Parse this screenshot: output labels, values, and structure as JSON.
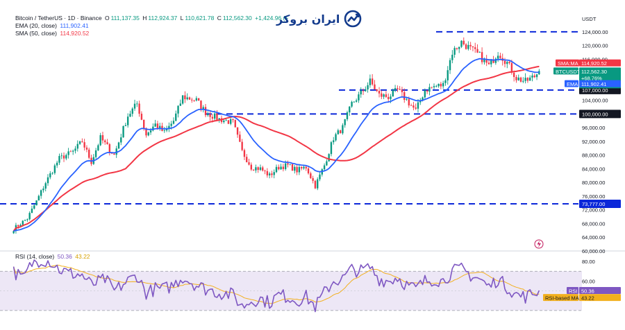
{
  "header": {
    "symbol": "Bitcoin / TetherUS · 1D · Binance",
    "open_label": "O",
    "open": "111,137.35",
    "high_label": "H",
    "high": "112,924.37",
    "low_label": "L",
    "low": "110,621.78",
    "close_label": "C",
    "close": "112,562.30",
    "change": "+1,424.96 (+"
  },
  "indicators": {
    "ema_label": "EMA (20, close)",
    "ema_value": "111,902.41",
    "sma_label": "SMA (50, close)",
    "sma_value": "114,920.52",
    "rsi_label": "RSI (14, close)",
    "rsi_value": "50.36",
    "rsi_ma_value": "43.22"
  },
  "logo": {
    "text": "ایران بروکر",
    "icon": "chart-trend-icon"
  },
  "currency": "USDT",
  "colors": {
    "up": "#089981",
    "down": "#f23645",
    "ema": "#2962ff",
    "sma": "#f23645",
    "level": "#0b27d9",
    "rsi": "#7e57c2",
    "rsi_ma": "#f2b01e",
    "rsi_band": "#ede7f6"
  },
  "price_labels": {
    "sma_tag": "SMA:MA",
    "sma_val": "114,920.52",
    "btc_tag": "BTCUSDT",
    "btc_val": "112,562.30",
    "btc_pct": "+68.76%",
    "btc_time": "07:54:40",
    "ema_tag": "EMA",
    "ema_val": "111,902.41",
    "rsi_tag": "RSI",
    "rsi_val": "50.36",
    "rsima_tag": "RSI-based MA",
    "rsima_val": "43.22"
  },
  "chart_data": {
    "type": "candlestick",
    "price_axis": {
      "ticks": [
        "124,000.00",
        "120,000.00",
        "116,000.00",
        "112,000.00",
        "108,000.00",
        "104,000.00",
        "100,000.00",
        "96,000.00",
        "92,000.00",
        "88,000.00",
        "84,000.00",
        "80,000.00",
        "76,000.00",
        "72,000.00",
        "68,000.00",
        "64,000.00",
        "60,000.00"
      ],
      "ylim": [
        60000,
        126000
      ]
    },
    "levels": [
      {
        "price": 124000
      },
      {
        "price": 107000,
        "label": "107,000.00"
      },
      {
        "price": 100000,
        "label": "100,000.00"
      },
      {
        "price": 73777,
        "label": "73,777.00"
      }
    ],
    "close_series_anchors": [
      [
        0,
        66500
      ],
      [
        6,
        69500
      ],
      [
        10,
        74500
      ],
      [
        14,
        80000
      ],
      [
        20,
        87000
      ],
      [
        26,
        89000
      ],
      [
        30,
        92000
      ],
      [
        34,
        86000
      ],
      [
        38,
        93000
      ],
      [
        44,
        88000
      ],
      [
        50,
        99500
      ],
      [
        54,
        103000
      ],
      [
        58,
        94000
      ],
      [
        62,
        97000
      ],
      [
        66,
        94500
      ],
      [
        70,
        98000
      ],
      [
        74,
        105000
      ],
      [
        80,
        104000
      ],
      [
        84,
        100500
      ],
      [
        90,
        98500
      ],
      [
        96,
        97500
      ],
      [
        100,
        89000
      ],
      [
        104,
        84500
      ],
      [
        108,
        84000
      ],
      [
        112,
        82000
      ],
      [
        116,
        84500
      ],
      [
        120,
        85000
      ],
      [
        124,
        83500
      ],
      [
        128,
        84500
      ],
      [
        132,
        79000
      ],
      [
        136,
        85000
      ],
      [
        140,
        93000
      ],
      [
        144,
        96000
      ],
      [
        148,
        103000
      ],
      [
        152,
        106000
      ],
      [
        156,
        109500
      ],
      [
        160,
        105500
      ],
      [
        164,
        105000
      ],
      [
        168,
        107000
      ],
      [
        172,
        104000
      ],
      [
        176,
        101000
      ],
      [
        180,
        107000
      ],
      [
        184,
        108000
      ],
      [
        188,
        108500
      ],
      [
        192,
        118000
      ],
      [
        196,
        121000
      ],
      [
        200,
        119000
      ],
      [
        204,
        117000
      ],
      [
        208,
        114000
      ],
      [
        212,
        118000
      ],
      [
        216,
        115000
      ],
      [
        220,
        110500
      ],
      [
        224,
        109500
      ],
      [
        228,
        111000
      ],
      [
        230,
        112562
      ]
    ],
    "ema_period": 20,
    "sma_period": 50,
    "rsi": {
      "ticks": [
        "80.00",
        "60.00"
      ],
      "ylim": [
        20,
        85
      ],
      "upper": 70,
      "lower": 30,
      "series_anchors": [
        [
          0,
          70
        ],
        [
          4,
          62
        ],
        [
          8,
          78
        ],
        [
          12,
          82
        ],
        [
          16,
          80
        ],
        [
          20,
          72
        ],
        [
          24,
          68
        ],
        [
          30,
          66
        ],
        [
          34,
          56
        ],
        [
          40,
          62
        ],
        [
          44,
          50
        ],
        [
          50,
          60
        ],
        [
          54,
          66
        ],
        [
          58,
          48
        ],
        [
          62,
          52
        ],
        [
          66,
          52
        ],
        [
          70,
          56
        ],
        [
          74,
          64
        ],
        [
          80,
          56
        ],
        [
          84,
          52
        ],
        [
          90,
          48
        ],
        [
          96,
          46
        ],
        [
          100,
          34
        ],
        [
          104,
          40
        ],
        [
          108,
          42
        ],
        [
          112,
          38
        ],
        [
          116,
          46
        ],
        [
          120,
          44
        ],
        [
          124,
          40
        ],
        [
          128,
          44
        ],
        [
          132,
          34
        ],
        [
          136,
          48
        ],
        [
          140,
          60
        ],
        [
          144,
          62
        ],
        [
          148,
          72
        ],
        [
          152,
          70
        ],
        [
          156,
          74
        ],
        [
          160,
          62
        ],
        [
          164,
          60
        ],
        [
          168,
          64
        ],
        [
          172,
          56
        ],
        [
          176,
          52
        ],
        [
          180,
          60
        ],
        [
          184,
          62
        ],
        [
          188,
          60
        ],
        [
          192,
          70
        ],
        [
          196,
          72
        ],
        [
          200,
          66
        ],
        [
          204,
          62
        ],
        [
          208,
          54
        ],
        [
          212,
          62
        ],
        [
          216,
          54
        ],
        [
          220,
          46
        ],
        [
          224,
          44
        ],
        [
          228,
          48
        ],
        [
          230,
          50.36
        ]
      ]
    }
  }
}
